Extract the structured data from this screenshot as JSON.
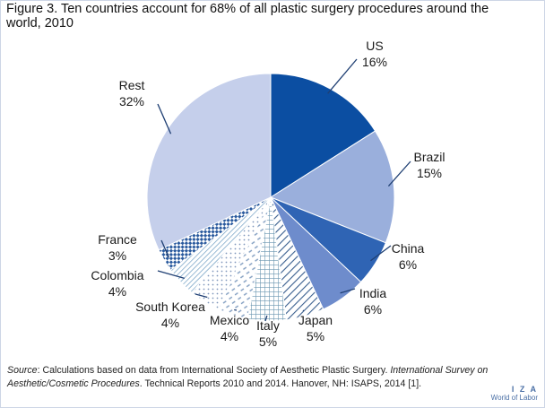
{
  "figure": {
    "title": "Figure 3. Ten countries account for 68% of all plastic surgery procedures around the world, 2010"
  },
  "source": {
    "prefix": "Source",
    "text1": ": Calculations based on data from International Society of Aesthetic Plastic Surgery. ",
    "italic": "International Survey on Aesthetic/Cosmetic Procedures",
    "text2": ". Technical Reports 2010 and 2014. Hanover, NH: ISAPS, 2014 [1]."
  },
  "logo": {
    "line1": "I Z A",
    "line2": "World of Labor"
  },
  "chart_data": {
    "type": "pie",
    "title": "Ten countries account for 68% of all plastic surgery procedures around the world, 2010",
    "start": "12 o'clock, clockwise",
    "slices": [
      {
        "label": "US",
        "value_label": "16%",
        "value": 16,
        "fill": "solid",
        "color": "#0b4ea2"
      },
      {
        "label": "Brazil",
        "value_label": "15%",
        "value": 15,
        "fill": "solid",
        "color": "#9aafdc"
      },
      {
        "label": "China",
        "value_label": "6%",
        "value": 6,
        "fill": "solid",
        "color": "#2f64b4"
      },
      {
        "label": "India",
        "value_label": "6%",
        "value": 6,
        "fill": "solid",
        "color": "#6e8ccc"
      },
      {
        "label": "Japan",
        "value_label": "5%",
        "value": 5,
        "fill": "diagonal-lines",
        "color": "#3a5f8f"
      },
      {
        "label": "Italy",
        "value_label": "5%",
        "value": 5,
        "fill": "grid",
        "color": "#7aa0b8"
      },
      {
        "label": "Mexico",
        "value_label": "4%",
        "value": 4,
        "fill": "dashes",
        "color": "#8aa4c4"
      },
      {
        "label": "South Korea",
        "value_label": "4%",
        "value": 4,
        "fill": "dots",
        "color": "#8aa0bf"
      },
      {
        "label": "Colombia",
        "value_label": "4%",
        "value": 4,
        "fill": "diagonal-lines-dense",
        "color": "#7aa8c8"
      },
      {
        "label": "France",
        "value_label": "3%",
        "value": 3,
        "fill": "checker",
        "color": "#2a5a9e"
      },
      {
        "label": "Rest",
        "value_label": "32%",
        "value": 32,
        "fill": "solid",
        "color": "#c5cfeb"
      }
    ]
  }
}
